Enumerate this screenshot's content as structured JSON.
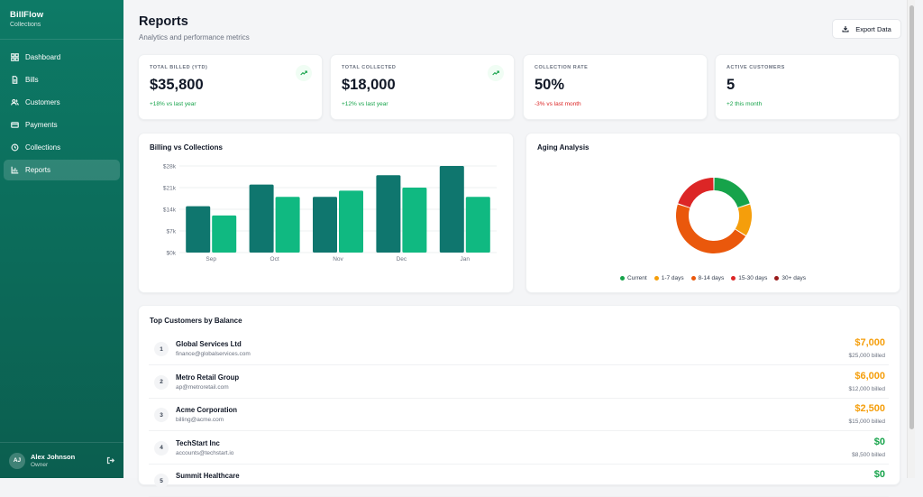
{
  "sidebar": {
    "brand": "BillFlow",
    "brand_sub": "Collections",
    "items": [
      {
        "label": "Dashboard",
        "icon": "dashboard-icon"
      },
      {
        "label": "Bills",
        "icon": "document-icon"
      },
      {
        "label": "Customers",
        "icon": "users-icon"
      },
      {
        "label": "Payments",
        "icon": "credit-card-icon"
      },
      {
        "label": "Collections",
        "icon": "clock-icon"
      },
      {
        "label": "Reports",
        "icon": "bar-chart-icon",
        "active": true
      }
    ],
    "user": {
      "initials": "AJ",
      "name": "Alex Johnson",
      "role": "Owner"
    }
  },
  "header": {
    "title": "Reports",
    "subtitle": "Analytics and performance metrics",
    "export_label": "Export Data"
  },
  "stats": [
    {
      "label": "TOTAL BILLED (YTD)",
      "value": "$35,800",
      "change": "+18% vs last year",
      "trend": "positive"
    },
    {
      "label": "TOTAL COLLECTED",
      "value": "$18,000",
      "change": "+12% vs last year",
      "trend": "positive"
    },
    {
      "label": "COLLECTION RATE",
      "value": "50%",
      "change": "-3% vs last month",
      "trend": "negative"
    },
    {
      "label": "ACTIVE CUSTOMERS",
      "value": "5",
      "change": "+2 this month",
      "trend": "positive"
    }
  ],
  "billing_panel": {
    "title": "Billing vs Collections"
  },
  "aging_panel": {
    "title": "Aging Analysis"
  },
  "chart_data": [
    {
      "type": "bar",
      "title": "Billing vs Collections",
      "categories": [
        "Sep",
        "Oct",
        "Nov",
        "Dec",
        "Jan"
      ],
      "series": [
        {
          "color": "#0f766e",
          "values": [
            15000,
            22000,
            18000,
            25000,
            28000
          ]
        },
        {
          "color": "#10b981",
          "values": [
            12000,
            18000,
            20000,
            21000,
            18000
          ]
        }
      ],
      "yticks": [
        "$0k",
        "$7k",
        "$14k",
        "$21k",
        "$28k"
      ],
      "ylim": [
        0,
        28000
      ],
      "grid": true
    },
    {
      "type": "pie",
      "title": "Aging Analysis",
      "categories": [
        "Current",
        "1-7 days",
        "8-14 days",
        "15-30 days",
        "30+ days"
      ],
      "values": [
        20,
        14,
        46,
        20,
        0
      ],
      "colors": [
        "#16a34a",
        "#f59e0b",
        "#ea580c",
        "#dc2626",
        "#991b1b"
      ],
      "legend": "bottom"
    }
  ],
  "top_customers": {
    "title": "Top Customers by Balance",
    "rows": [
      {
        "rank": "1",
        "name": "Global Services Ltd",
        "email": "finance@globalservices.com",
        "balance": "$7,000",
        "billed": "$25,000 billed",
        "color": "#f59e0b"
      },
      {
        "rank": "2",
        "name": "Metro Retail Group",
        "email": "ap@metroretail.com",
        "balance": "$6,000",
        "billed": "$12,000 billed",
        "color": "#f59e0b"
      },
      {
        "rank": "3",
        "name": "Acme Corporation",
        "email": "billing@acme.com",
        "balance": "$2,500",
        "billed": "$15,000 billed",
        "color": "#f59e0b"
      },
      {
        "rank": "4",
        "name": "TechStart Inc",
        "email": "accounts@techstart.io",
        "balance": "$0",
        "billed": "$8,500 billed",
        "color": "#16a34a"
      },
      {
        "rank": "5",
        "name": "Summit Healthcare",
        "email": "",
        "balance": "$0",
        "billed": "",
        "color": "#16a34a"
      }
    ]
  }
}
